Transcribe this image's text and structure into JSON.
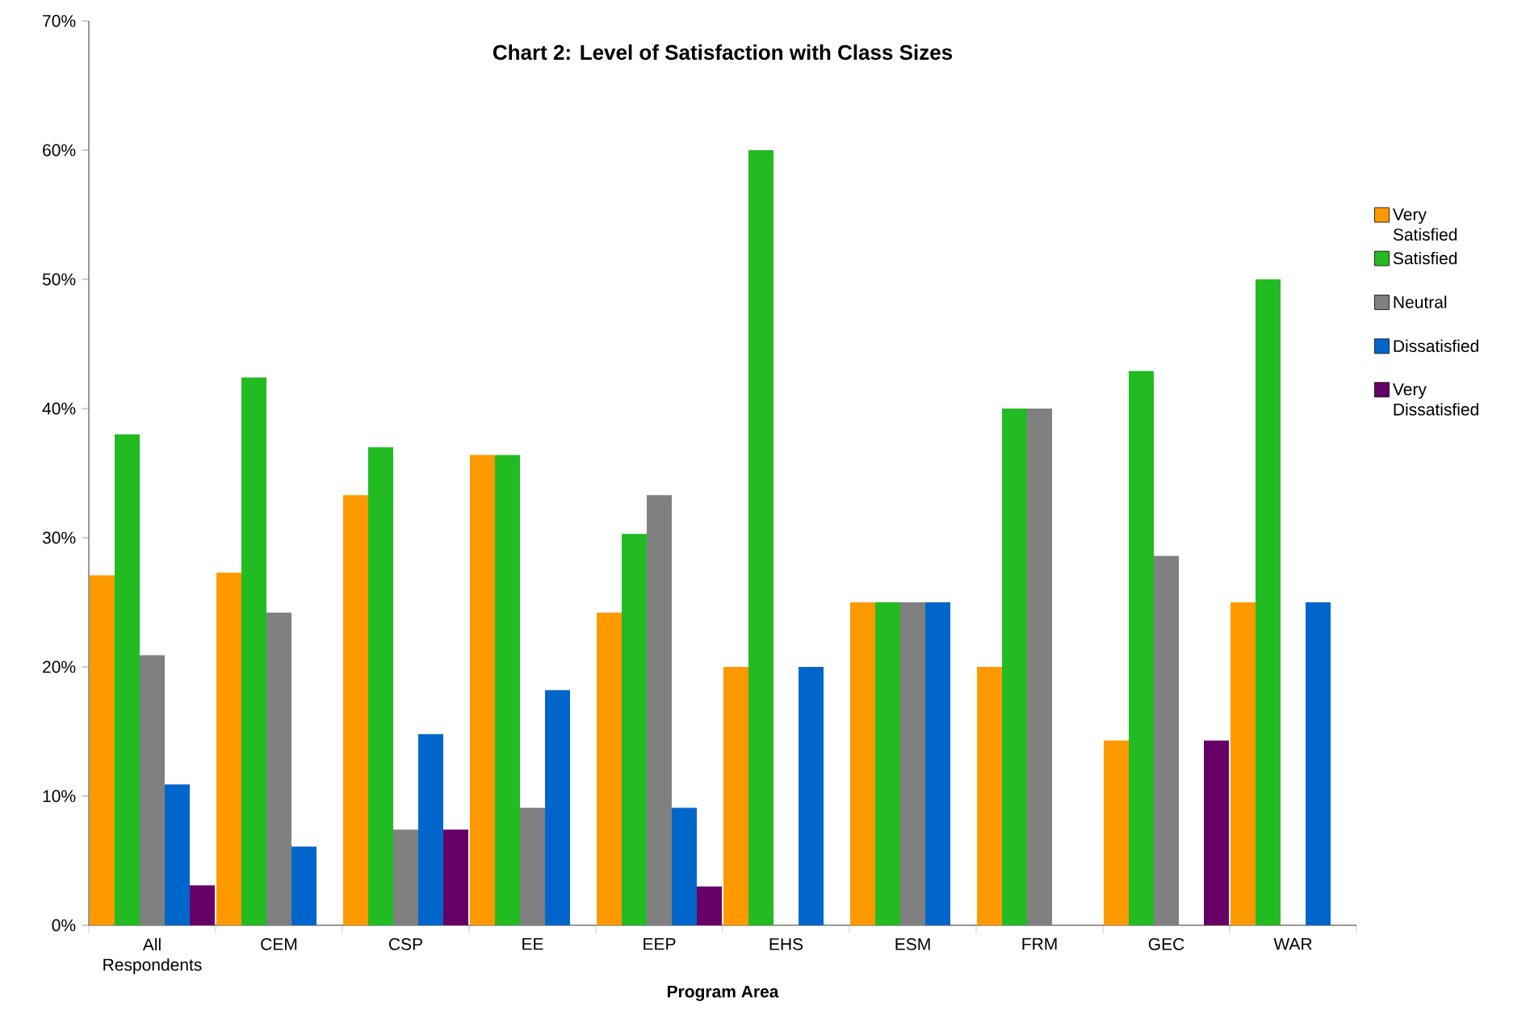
{
  "chart_data": {
    "type": "bar",
    "title": "Chart 2: Level of Satisfaction with Class Sizes",
    "xlabel": "Program Area",
    "categories": [
      "All Respondents",
      "CEM",
      "CSP",
      "EE",
      "EEP",
      "EHS",
      "ESM",
      "FRM",
      "GEC",
      "WAR"
    ],
    "series": [
      {
        "name": "Very Satisfied",
        "color": "#ff9900",
        "values": [
          27.1,
          27.3,
          33.3,
          36.4,
          24.2,
          20,
          25,
          20,
          14.3,
          25
        ]
      },
      {
        "name": "Satisfied",
        "color": "#22bb22",
        "values": [
          38,
          42.4,
          37,
          36.4,
          30.3,
          60,
          25,
          40,
          42.9,
          50
        ]
      },
      {
        "name": "Neutral",
        "color": "#808080",
        "values": [
          20.9,
          24.2,
          7.4,
          9.1,
          33.3,
          0,
          25,
          40,
          28.6,
          0
        ]
      },
      {
        "name": "Dissatisfied",
        "color": "#0066cc",
        "values": [
          10.9,
          6.1,
          14.8,
          18.2,
          9.1,
          20,
          25,
          0,
          0,
          25
        ]
      },
      {
        "name": "Very Dissatisfied",
        "color": "#660066",
        "values": [
          3.1,
          0,
          7.4,
          0,
          3.0,
          0,
          0,
          0,
          14.3,
          0
        ]
      }
    ],
    "ylim": [
      0,
      70
    ],
    "yticks": [
      {
        "value": 0,
        "label": "0%"
      },
      {
        "value": 10,
        "label": "10%"
      },
      {
        "value": 20,
        "label": "20%"
      },
      {
        "value": 30,
        "label": "30%"
      },
      {
        "value": 40,
        "label": "40%"
      },
      {
        "value": 50,
        "label": "50%"
      },
      {
        "value": 60,
        "label": "60%"
      },
      {
        "value": 70,
        "label": "70%"
      }
    ],
    "grid": false,
    "legend": "right"
  }
}
